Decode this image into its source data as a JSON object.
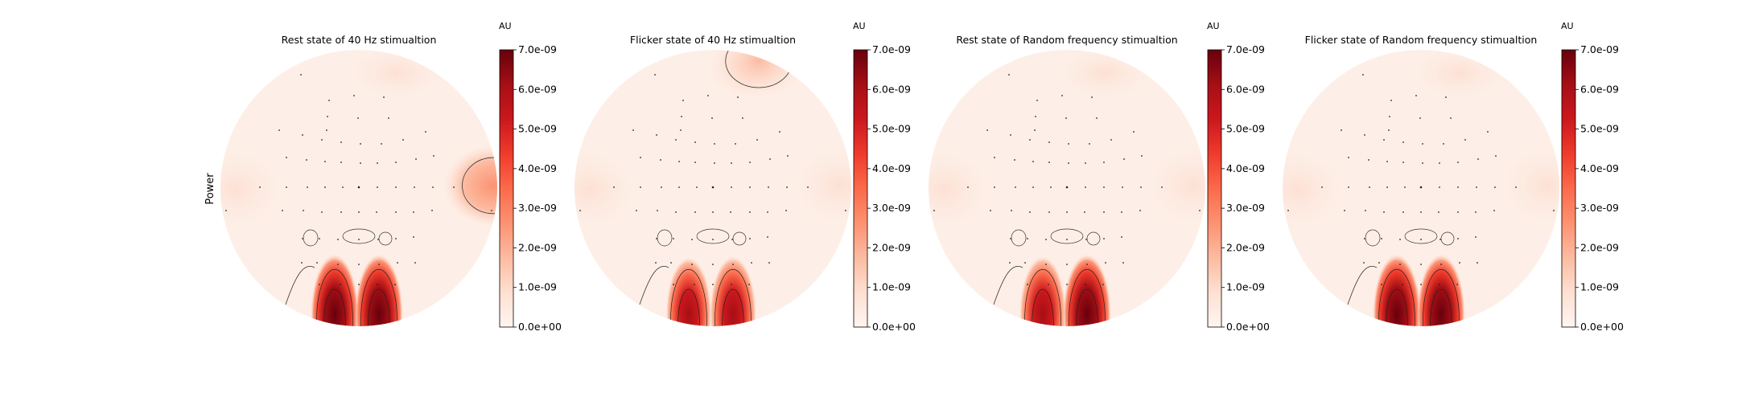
{
  "figure": {
    "ylabel": "Power"
  },
  "chart_data": [
    {
      "type": "heatmap",
      "title": "Rest state of 40 Hz stimualtion",
      "colorbar": {
        "unit": "AU",
        "ticks": [
          "0.0e+00",
          "1.0e-09",
          "2.0e-09",
          "3.0e-09",
          "4.0e-09",
          "5.0e-09",
          "6.0e-09",
          "7.0e-09"
        ],
        "range": [
          0,
          7e-09
        ],
        "colormap": "Reds"
      },
      "colors": {
        "low": "#fff5f0",
        "high": "#67000d"
      },
      "hotspots": [
        {
          "region": "right-temporal",
          "value": 3.5e-09
        },
        {
          "region": "occipital-left",
          "value": 7e-09
        },
        {
          "region": "occipital-right",
          "value": 7e-09
        }
      ]
    },
    {
      "type": "heatmap",
      "title": "Flicker state of 40 Hz stimualtion",
      "colorbar": {
        "unit": "AU",
        "ticks": [
          "0.0e+00",
          "1.0e-09",
          "2.0e-09",
          "3.0e-09",
          "4.0e-09",
          "5.0e-09",
          "6.0e-09",
          "7.0e-09"
        ],
        "range": [
          0,
          7e-09
        ],
        "colormap": "Reds"
      },
      "colors": {
        "low": "#fff5f0",
        "high": "#67000d"
      },
      "hotspots": [
        {
          "region": "frontal-right",
          "value": 1.5e-09
        },
        {
          "region": "occipital-left",
          "value": 5.5e-09
        },
        {
          "region": "occipital-right",
          "value": 6e-09
        }
      ]
    },
    {
      "type": "heatmap",
      "title": "Rest state of Random frequency stimualtion",
      "colorbar": {
        "unit": "AU",
        "ticks": [
          "0.0e+00",
          "1.0e-09",
          "2.0e-09",
          "3.0e-09",
          "4.0e-09",
          "5.0e-09",
          "6.0e-09",
          "7.0e-09"
        ],
        "range": [
          0,
          7e-09
        ],
        "colormap": "Reds"
      },
      "colors": {
        "low": "#fff5f0",
        "high": "#67000d"
      },
      "hotspots": [
        {
          "region": "occipital-left",
          "value": 6e-09
        },
        {
          "region": "occipital-right",
          "value": 7e-09
        }
      ]
    },
    {
      "type": "heatmap",
      "title": "Flicker state of Random frequency stimualtion",
      "colorbar": {
        "unit": "AU",
        "ticks": [
          "0.0e+00",
          "1.0e-09",
          "2.0e-09",
          "3.0e-09",
          "4.0e-09",
          "5.0e-09",
          "6.0e-09",
          "7.0e-09"
        ],
        "range": [
          0,
          7e-09
        ],
        "colormap": "Reds"
      },
      "colors": {
        "low": "#fff5f0",
        "high": "#67000d"
      },
      "hotspots": [
        {
          "region": "occipital-left",
          "value": 7e-09
        },
        {
          "region": "occipital-right",
          "value": 7e-09
        }
      ]
    }
  ]
}
